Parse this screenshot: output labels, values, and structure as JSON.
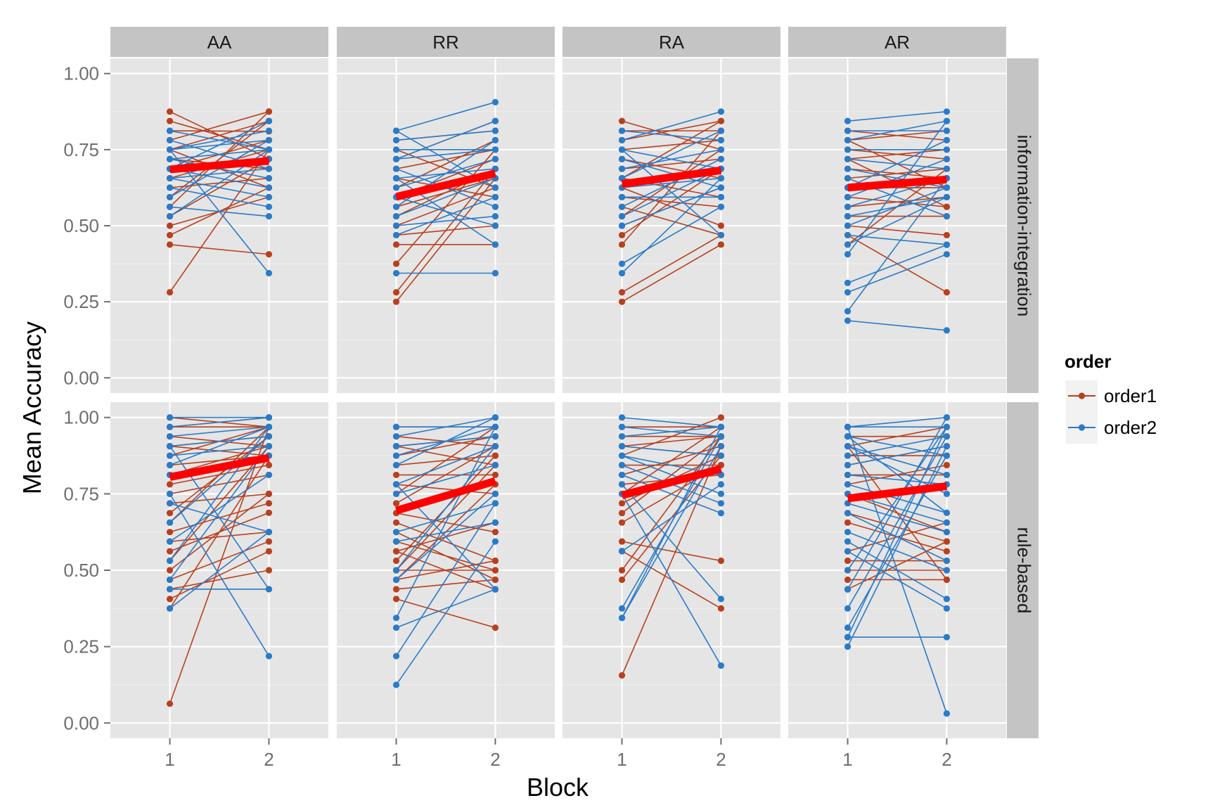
{
  "chart_data": {
    "type": "line",
    "xlabel": "Block",
    "ylabel": "Mean Accuracy",
    "x_ticks": [
      "1",
      "2"
    ],
    "y_ticks": [
      "0.00",
      "0.25",
      "0.50",
      "0.75",
      "1.00"
    ],
    "ylim": [
      0,
      1
    ],
    "xlim": [
      0.4,
      2.6
    ],
    "grid": true,
    "col_facets": [
      "AA",
      "RR",
      "RA",
      "AR"
    ],
    "row_facets": [
      "information-integration",
      "rule-based"
    ],
    "legend": {
      "title": "order",
      "position": "right",
      "items": [
        {
          "label": "order1",
          "color": "#B8401F"
        },
        {
          "label": "order2",
          "color": "#2A7BC8"
        }
      ]
    },
    "mean_line_color": "#FF0000",
    "panels": [
      {
        "row": "information-integration",
        "col": "AA",
        "mean": [
          0.685,
          0.713
        ],
        "order1": [
          [
            0.875,
            0.72
          ],
          [
            0.844,
            0.75
          ],
          [
            0.812,
            0.81
          ],
          [
            0.781,
            0.875
          ],
          [
            0.75,
            0.625
          ],
          [
            0.75,
            0.844
          ],
          [
            0.719,
            0.687
          ],
          [
            0.687,
            0.781
          ],
          [
            0.656,
            0.75
          ],
          [
            0.625,
            0.656
          ],
          [
            0.594,
            0.844
          ],
          [
            0.562,
            0.875
          ],
          [
            0.531,
            0.719
          ],
          [
            0.5,
            0.594
          ],
          [
            0.469,
            0.625
          ],
          [
            0.438,
            0.406
          ],
          [
            0.281,
            0.75
          ]
        ],
        "order2": [
          [
            0.812,
            0.75
          ],
          [
            0.781,
            0.687
          ],
          [
            0.75,
            0.812
          ],
          [
            0.75,
            0.781
          ],
          [
            0.719,
            0.75
          ],
          [
            0.687,
            0.719
          ],
          [
            0.687,
            0.844
          ],
          [
            0.656,
            0.594
          ],
          [
            0.625,
            0.562
          ],
          [
            0.594,
            0.781
          ],
          [
            0.562,
            0.531
          ],
          [
            0.531,
            0.75
          ],
          [
            0.75,
            0.344
          ],
          [
            0.719,
            0.656
          ],
          [
            0.656,
            0.687
          ],
          [
            0.687,
            0.625
          ]
        ]
      },
      {
        "row": "information-integration",
        "col": "RR",
        "mean": [
          0.595,
          0.672
        ],
        "order1": [
          [
            0.781,
            0.812
          ],
          [
            0.75,
            0.625
          ],
          [
            0.719,
            0.844
          ],
          [
            0.687,
            0.75
          ],
          [
            0.656,
            0.594
          ],
          [
            0.625,
            0.781
          ],
          [
            0.594,
            0.719
          ],
          [
            0.562,
            0.656
          ],
          [
            0.531,
            0.687
          ],
          [
            0.5,
            0.625
          ],
          [
            0.469,
            0.5
          ],
          [
            0.438,
            0.438
          ],
          [
            0.375,
            0.75
          ],
          [
            0.281,
            0.687
          ],
          [
            0.25,
            0.656
          ]
        ],
        "order2": [
          [
            0.812,
            0.906
          ],
          [
            0.781,
            0.812
          ],
          [
            0.75,
            0.75
          ],
          [
            0.719,
            0.844
          ],
          [
            0.687,
            0.562
          ],
          [
            0.656,
            0.687
          ],
          [
            0.625,
            0.719
          ],
          [
            0.594,
            0.5
          ],
          [
            0.562,
            0.781
          ],
          [
            0.531,
            0.656
          ],
          [
            0.5,
            0.531
          ],
          [
            0.469,
            0.594
          ],
          [
            0.344,
            0.344
          ],
          [
            0.656,
            0.438
          ],
          [
            0.812,
            0.625
          ],
          [
            0.719,
            0.75
          ]
        ]
      },
      {
        "row": "information-integration",
        "col": "RA",
        "mean": [
          0.637,
          0.682
        ],
        "order1": [
          [
            0.844,
            0.75
          ],
          [
            0.812,
            0.812
          ],
          [
            0.781,
            0.844
          ],
          [
            0.75,
            0.781
          ],
          [
            0.719,
            0.656
          ],
          [
            0.687,
            0.719
          ],
          [
            0.656,
            0.594
          ],
          [
            0.625,
            0.5
          ],
          [
            0.594,
            0.562
          ],
          [
            0.562,
            0.469
          ],
          [
            0.531,
            0.75
          ],
          [
            0.5,
            0.625
          ],
          [
            0.469,
            0.687
          ],
          [
            0.438,
            0.812
          ],
          [
            0.281,
            0.469
          ],
          [
            0.25,
            0.438
          ],
          [
            0.656,
            0.844
          ]
        ],
        "order2": [
          [
            0.812,
            0.781
          ],
          [
            0.781,
            0.875
          ],
          [
            0.75,
            0.687
          ],
          [
            0.719,
            0.625
          ],
          [
            0.687,
            0.75
          ],
          [
            0.656,
            0.812
          ],
          [
            0.625,
            0.656
          ],
          [
            0.594,
            0.594
          ],
          [
            0.562,
            0.719
          ],
          [
            0.531,
            0.687
          ],
          [
            0.5,
            0.625
          ],
          [
            0.375,
            0.562
          ],
          [
            0.344,
            0.656
          ],
          [
            0.75,
            0.469
          ]
        ]
      },
      {
        "row": "information-integration",
        "col": "AR",
        "mean": [
          0.625,
          0.652
        ],
        "order1": [
          [
            0.812,
            0.781
          ],
          [
            0.781,
            0.812
          ],
          [
            0.75,
            0.719
          ],
          [
            0.719,
            0.75
          ],
          [
            0.687,
            0.656
          ],
          [
            0.656,
            0.687
          ],
          [
            0.625,
            0.625
          ],
          [
            0.594,
            0.562
          ],
          [
            0.562,
            0.594
          ],
          [
            0.531,
            0.531
          ],
          [
            0.5,
            0.469
          ],
          [
            0.469,
            0.281
          ],
          [
            0.438,
            0.687
          ],
          [
            0.719,
            0.562
          ],
          [
            0.781,
            0.625
          ]
        ],
        "order2": [
          [
            0.844,
            0.875
          ],
          [
            0.812,
            0.812
          ],
          [
            0.781,
            0.844
          ],
          [
            0.75,
            0.75
          ],
          [
            0.719,
            0.687
          ],
          [
            0.687,
            0.625
          ],
          [
            0.656,
            0.531
          ],
          [
            0.625,
            0.781
          ],
          [
            0.594,
            0.719
          ],
          [
            0.562,
            0.656
          ],
          [
            0.531,
            0.594
          ],
          [
            0.5,
            0.625
          ],
          [
            0.469,
            0.438
          ],
          [
            0.438,
            0.594
          ],
          [
            0.406,
            0.844
          ],
          [
            0.312,
            0.437
          ],
          [
            0.281,
            0.406
          ],
          [
            0.219,
            0.656
          ],
          [
            0.188,
            0.156
          ]
        ]
      },
      {
        "row": "rule-based",
        "col": "AA",
        "mean": [
          0.805,
          0.868
        ],
        "order1": [
          [
            1.0,
            0.969
          ],
          [
            0.969,
            1.0
          ],
          [
            0.938,
            0.906
          ],
          [
            0.906,
            0.938
          ],
          [
            0.875,
            0.969
          ],
          [
            0.844,
            0.875
          ],
          [
            0.812,
            0.906
          ],
          [
            0.781,
            0.844
          ],
          [
            0.75,
            0.812
          ],
          [
            0.719,
            0.75
          ],
          [
            0.687,
            0.938
          ],
          [
            0.656,
            0.969
          ],
          [
            0.625,
            0.719
          ],
          [
            0.594,
            0.625
          ],
          [
            0.562,
            0.688
          ],
          [
            0.531,
            0.906
          ],
          [
            0.5,
            0.75
          ],
          [
            0.469,
            0.594
          ],
          [
            0.438,
            0.5
          ],
          [
            0.406,
            0.562
          ],
          [
            0.375,
            0.875
          ],
          [
            0.063,
            0.969
          ],
          [
            0.969,
            0.969
          ],
          [
            0.906,
            0.875
          ]
        ],
        "order2": [
          [
            0.969,
            1.0
          ],
          [
            0.938,
            0.969
          ],
          [
            0.906,
            0.938
          ],
          [
            0.875,
            0.906
          ],
          [
            0.844,
            0.969
          ],
          [
            0.812,
            0.875
          ],
          [
            0.75,
            0.219
          ],
          [
            0.719,
            0.625
          ],
          [
            0.656,
            0.938
          ],
          [
            0.594,
            0.812
          ],
          [
            0.531,
            0.969
          ],
          [
            0.469,
            0.906
          ],
          [
            0.438,
            0.438
          ],
          [
            0.375,
            0.625
          ],
          [
            0.906,
            0.438
          ],
          [
            1.0,
            1.0
          ]
        ]
      },
      {
        "row": "rule-based",
        "col": "RR",
        "mean": [
          0.695,
          0.792
        ],
        "order1": [
          [
            0.969,
            0.969
          ],
          [
            0.938,
            0.906
          ],
          [
            0.906,
            0.844
          ],
          [
            0.875,
            0.938
          ],
          [
            0.844,
            0.875
          ],
          [
            0.812,
            0.812
          ],
          [
            0.781,
            0.75
          ],
          [
            0.75,
            0.969
          ],
          [
            0.719,
            0.906
          ],
          [
            0.687,
            0.625
          ],
          [
            0.656,
            0.531
          ],
          [
            0.625,
            0.469
          ],
          [
            0.594,
            0.5
          ],
          [
            0.562,
            0.437
          ],
          [
            0.531,
            0.875
          ],
          [
            0.5,
            0.844
          ],
          [
            0.469,
            0.531
          ],
          [
            0.438,
            0.469
          ],
          [
            0.406,
            0.312
          ],
          [
            0.562,
            0.656
          ],
          [
            0.5,
            0.5
          ],
          [
            0.469,
            0.781
          ],
          [
            0.906,
            0.938
          ]
        ],
        "order2": [
          [
            0.969,
            0.969
          ],
          [
            0.938,
            1.0
          ],
          [
            0.906,
            0.938
          ],
          [
            0.875,
            0.969
          ],
          [
            0.844,
            1.0
          ],
          [
            0.781,
            0.906
          ],
          [
            0.75,
            0.844
          ],
          [
            0.625,
            0.719
          ],
          [
            0.594,
            0.656
          ],
          [
            0.5,
            0.906
          ],
          [
            0.469,
            0.75
          ],
          [
            0.344,
            0.969
          ],
          [
            0.312,
            0.438
          ],
          [
            0.219,
            0.719
          ],
          [
            0.125,
            0.594
          ],
          [
            0.781,
            0.438
          ]
        ]
      },
      {
        "row": "rule-based",
        "col": "RA",
        "mean": [
          0.745,
          0.832
        ],
        "order1": [
          [
            0.969,
            0.969
          ],
          [
            0.938,
            0.938
          ],
          [
            0.906,
            0.875
          ],
          [
            0.875,
            1.0
          ],
          [
            0.844,
            0.844
          ],
          [
            0.812,
            0.906
          ],
          [
            0.781,
            0.812
          ],
          [
            0.75,
            0.969
          ],
          [
            0.719,
            0.875
          ],
          [
            0.687,
            0.937
          ],
          [
            0.656,
            0.844
          ],
          [
            0.594,
            0.531
          ],
          [
            0.5,
            0.938
          ],
          [
            0.469,
            0.875
          ],
          [
            0.156,
            0.906
          ],
          [
            0.563,
            0.375
          ],
          [
            0.906,
            0.938
          ]
        ],
        "order2": [
          [
            1.0,
            0.969
          ],
          [
            0.969,
            0.938
          ],
          [
            0.938,
            0.969
          ],
          [
            0.906,
            0.875
          ],
          [
            0.875,
            0.75
          ],
          [
            0.844,
            0.719
          ],
          [
            0.812,
            0.687
          ],
          [
            0.781,
            0.406
          ],
          [
            0.75,
            0.188
          ],
          [
            0.562,
            0.781
          ],
          [
            0.375,
            0.938
          ],
          [
            0.344,
            0.906
          ],
          [
            0.344,
            0.969
          ],
          [
            0.875,
            0.812
          ]
        ]
      },
      {
        "row": "rule-based",
        "col": "AR",
        "mean": [
          0.735,
          0.775
        ],
        "order1": [
          [
            0.938,
            0.938
          ],
          [
            0.906,
            0.969
          ],
          [
            0.875,
            0.875
          ],
          [
            0.844,
            0.906
          ],
          [
            0.812,
            0.812
          ],
          [
            0.781,
            0.844
          ],
          [
            0.75,
            0.625
          ],
          [
            0.687,
            0.594
          ],
          [
            0.656,
            0.562
          ],
          [
            0.562,
            0.656
          ],
          [
            0.531,
            0.531
          ],
          [
            0.5,
            0.5
          ],
          [
            0.469,
            0.469
          ],
          [
            0.438,
            0.594
          ],
          [
            0.906,
            0.469
          ]
        ],
        "order2": [
          [
            0.969,
            1.0
          ],
          [
            0.969,
            0.969
          ],
          [
            0.938,
            0.875
          ],
          [
            0.906,
            0.812
          ],
          [
            0.875,
            0.938
          ],
          [
            0.844,
            0.906
          ],
          [
            0.812,
            0.781
          ],
          [
            0.781,
            0.688
          ],
          [
            0.75,
            0.656
          ],
          [
            0.719,
            0.625
          ],
          [
            0.687,
            0.531
          ],
          [
            0.625,
            0.5
          ],
          [
            0.594,
            0.406
          ],
          [
            0.562,
            0.375
          ],
          [
            0.5,
            0.969
          ],
          [
            0.437,
            1.0
          ],
          [
            0.375,
            0.938
          ],
          [
            0.312,
            0.875
          ],
          [
            0.281,
            0.281
          ],
          [
            0.281,
            0.969
          ],
          [
            0.25,
            0.906
          ],
          [
            0.969,
            0.031
          ],
          [
            0.938,
            0.688
          ],
          [
            0.906,
            0.75
          ]
        ]
      }
    ]
  }
}
